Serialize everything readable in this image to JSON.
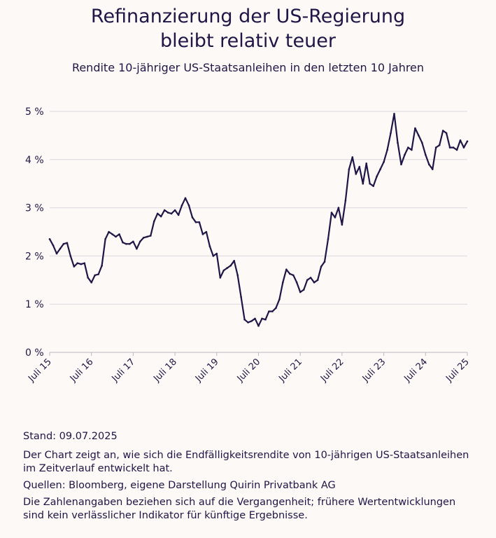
{
  "title_line1": "Refinanzierung der US-Regierung",
  "title_line2": "bleibt relativ teuer",
  "subtitle": "Rendite 10-jähriger US-Staatsanleihen in den letzten 10 Jahren",
  "colors": {
    "line": "#1e1646",
    "grid": "#dcd8de",
    "background": "#fcf9f7"
  },
  "chart_data": {
    "type": "line",
    "title": "Refinanzierung der US-Regierung bleibt relativ teuer",
    "subtitle": "Rendite 10-jähriger US-Staatsanleihen in den letzten 10 Jahren",
    "xlabel": "",
    "ylabel": "",
    "ylim": [
      0,
      5
    ],
    "xlim": [
      "2015-07",
      "2025-07"
    ],
    "grid": "horizontal",
    "y_ticks": [
      0,
      1,
      2,
      3,
      4,
      5
    ],
    "y_tick_labels": [
      "0 %",
      "1 %",
      "2 %",
      "3 %",
      "4 %",
      "5 %"
    ],
    "x_ticks": [
      "2015-07",
      "2016-07",
      "2017-07",
      "2018-07",
      "2019-07",
      "2020-07",
      "2021-07",
      "2022-07",
      "2023-07",
      "2024-07",
      "2025-07"
    ],
    "x_tick_labels": [
      "Juli 15",
      "Juli 16",
      "Juli 17",
      "Juli 18",
      "Juli 19",
      "Juli 20",
      "Juli 21",
      "Juli 22",
      "Juli 23",
      "Juli 24",
      "Juli 25"
    ],
    "x": [
      "2015-07",
      "2015-08",
      "2015-09",
      "2015-10",
      "2015-11",
      "2015-12",
      "2016-01",
      "2016-02",
      "2016-03",
      "2016-04",
      "2016-05",
      "2016-06",
      "2016-07",
      "2016-08",
      "2016-09",
      "2016-10",
      "2016-11",
      "2016-12",
      "2017-01",
      "2017-02",
      "2017-03",
      "2017-04",
      "2017-05",
      "2017-06",
      "2017-07",
      "2017-08",
      "2017-09",
      "2017-10",
      "2017-11",
      "2017-12",
      "2018-01",
      "2018-02",
      "2018-03",
      "2018-04",
      "2018-05",
      "2018-06",
      "2018-07",
      "2018-08",
      "2018-09",
      "2018-10",
      "2018-11",
      "2018-12",
      "2019-01",
      "2019-02",
      "2019-03",
      "2019-04",
      "2019-05",
      "2019-06",
      "2019-07",
      "2019-08",
      "2019-09",
      "2019-10",
      "2019-11",
      "2019-12",
      "2020-01",
      "2020-02",
      "2020-03",
      "2020-04",
      "2020-05",
      "2020-06",
      "2020-07",
      "2020-08",
      "2020-09",
      "2020-10",
      "2020-11",
      "2020-12",
      "2021-01",
      "2021-02",
      "2021-03",
      "2021-04",
      "2021-05",
      "2021-06",
      "2021-07",
      "2021-08",
      "2021-09",
      "2021-10",
      "2021-11",
      "2021-12",
      "2022-01",
      "2022-02",
      "2022-03",
      "2022-04",
      "2022-05",
      "2022-06",
      "2022-07",
      "2022-08",
      "2022-09",
      "2022-10",
      "2022-11",
      "2022-12",
      "2023-01",
      "2023-02",
      "2023-03",
      "2023-04",
      "2023-05",
      "2023-06",
      "2023-07",
      "2023-08",
      "2023-09",
      "2023-10",
      "2023-11",
      "2023-12",
      "2024-01",
      "2024-02",
      "2024-03",
      "2024-04",
      "2024-05",
      "2024-06",
      "2024-07",
      "2024-08",
      "2024-09",
      "2024-10",
      "2024-11",
      "2024-12",
      "2025-01",
      "2025-02",
      "2025-03",
      "2025-04",
      "2025-05",
      "2025-06",
      "2025-07"
    ],
    "series": [
      {
        "values": [
          2.35,
          2.22,
          2.05,
          2.15,
          2.25,
          2.27,
          2.0,
          1.78,
          1.85,
          1.83,
          1.85,
          1.55,
          1.45,
          1.6,
          1.62,
          1.8,
          2.35,
          2.5,
          2.45,
          2.4,
          2.45,
          2.28,
          2.25,
          2.25,
          2.3,
          2.15,
          2.3,
          2.38,
          2.4,
          2.42,
          2.72,
          2.88,
          2.82,
          2.95,
          2.9,
          2.88,
          2.95,
          2.85,
          3.05,
          3.2,
          3.05,
          2.8,
          2.7,
          2.7,
          2.45,
          2.5,
          2.2,
          2.0,
          2.05,
          1.55,
          1.7,
          1.75,
          1.8,
          1.9,
          1.6,
          1.15,
          0.68,
          0.62,
          0.65,
          0.7,
          0.55,
          0.7,
          0.68,
          0.85,
          0.85,
          0.92,
          1.1,
          1.45,
          1.72,
          1.63,
          1.6,
          1.45,
          1.25,
          1.3,
          1.5,
          1.55,
          1.45,
          1.5,
          1.78,
          1.88,
          2.35,
          2.9,
          2.8,
          3.0,
          2.65,
          3.15,
          3.8,
          4.05,
          3.7,
          3.85,
          3.5,
          3.92,
          3.5,
          3.45,
          3.65,
          3.8,
          3.95,
          4.2,
          4.55,
          4.95,
          4.35,
          3.9,
          4.1,
          4.25,
          4.2,
          4.65,
          4.5,
          4.35,
          4.1,
          3.9,
          3.8,
          4.25,
          4.3,
          4.6,
          4.55,
          4.25,
          4.25,
          4.2,
          4.4,
          4.25,
          4.38
        ]
      }
    ]
  },
  "notes": {
    "stand": "Stand: 09.07.2025",
    "desc": "Der Chart zeigt an, wie sich die Endfälligkeitsrendite von 10-jährigen US-Staatsanleihen im Zeitverlauf entwickelt hat.",
    "sources": "Quellen: Bloomberg, eigene Darstellung Quirin Privatbank AG",
    "disclaimer": "Die Zahlenangaben beziehen sich auf die Vergangenheit; frühere Wertentwicklungen sind kein verlässlicher Indikator für künftige Ergebnisse."
  }
}
